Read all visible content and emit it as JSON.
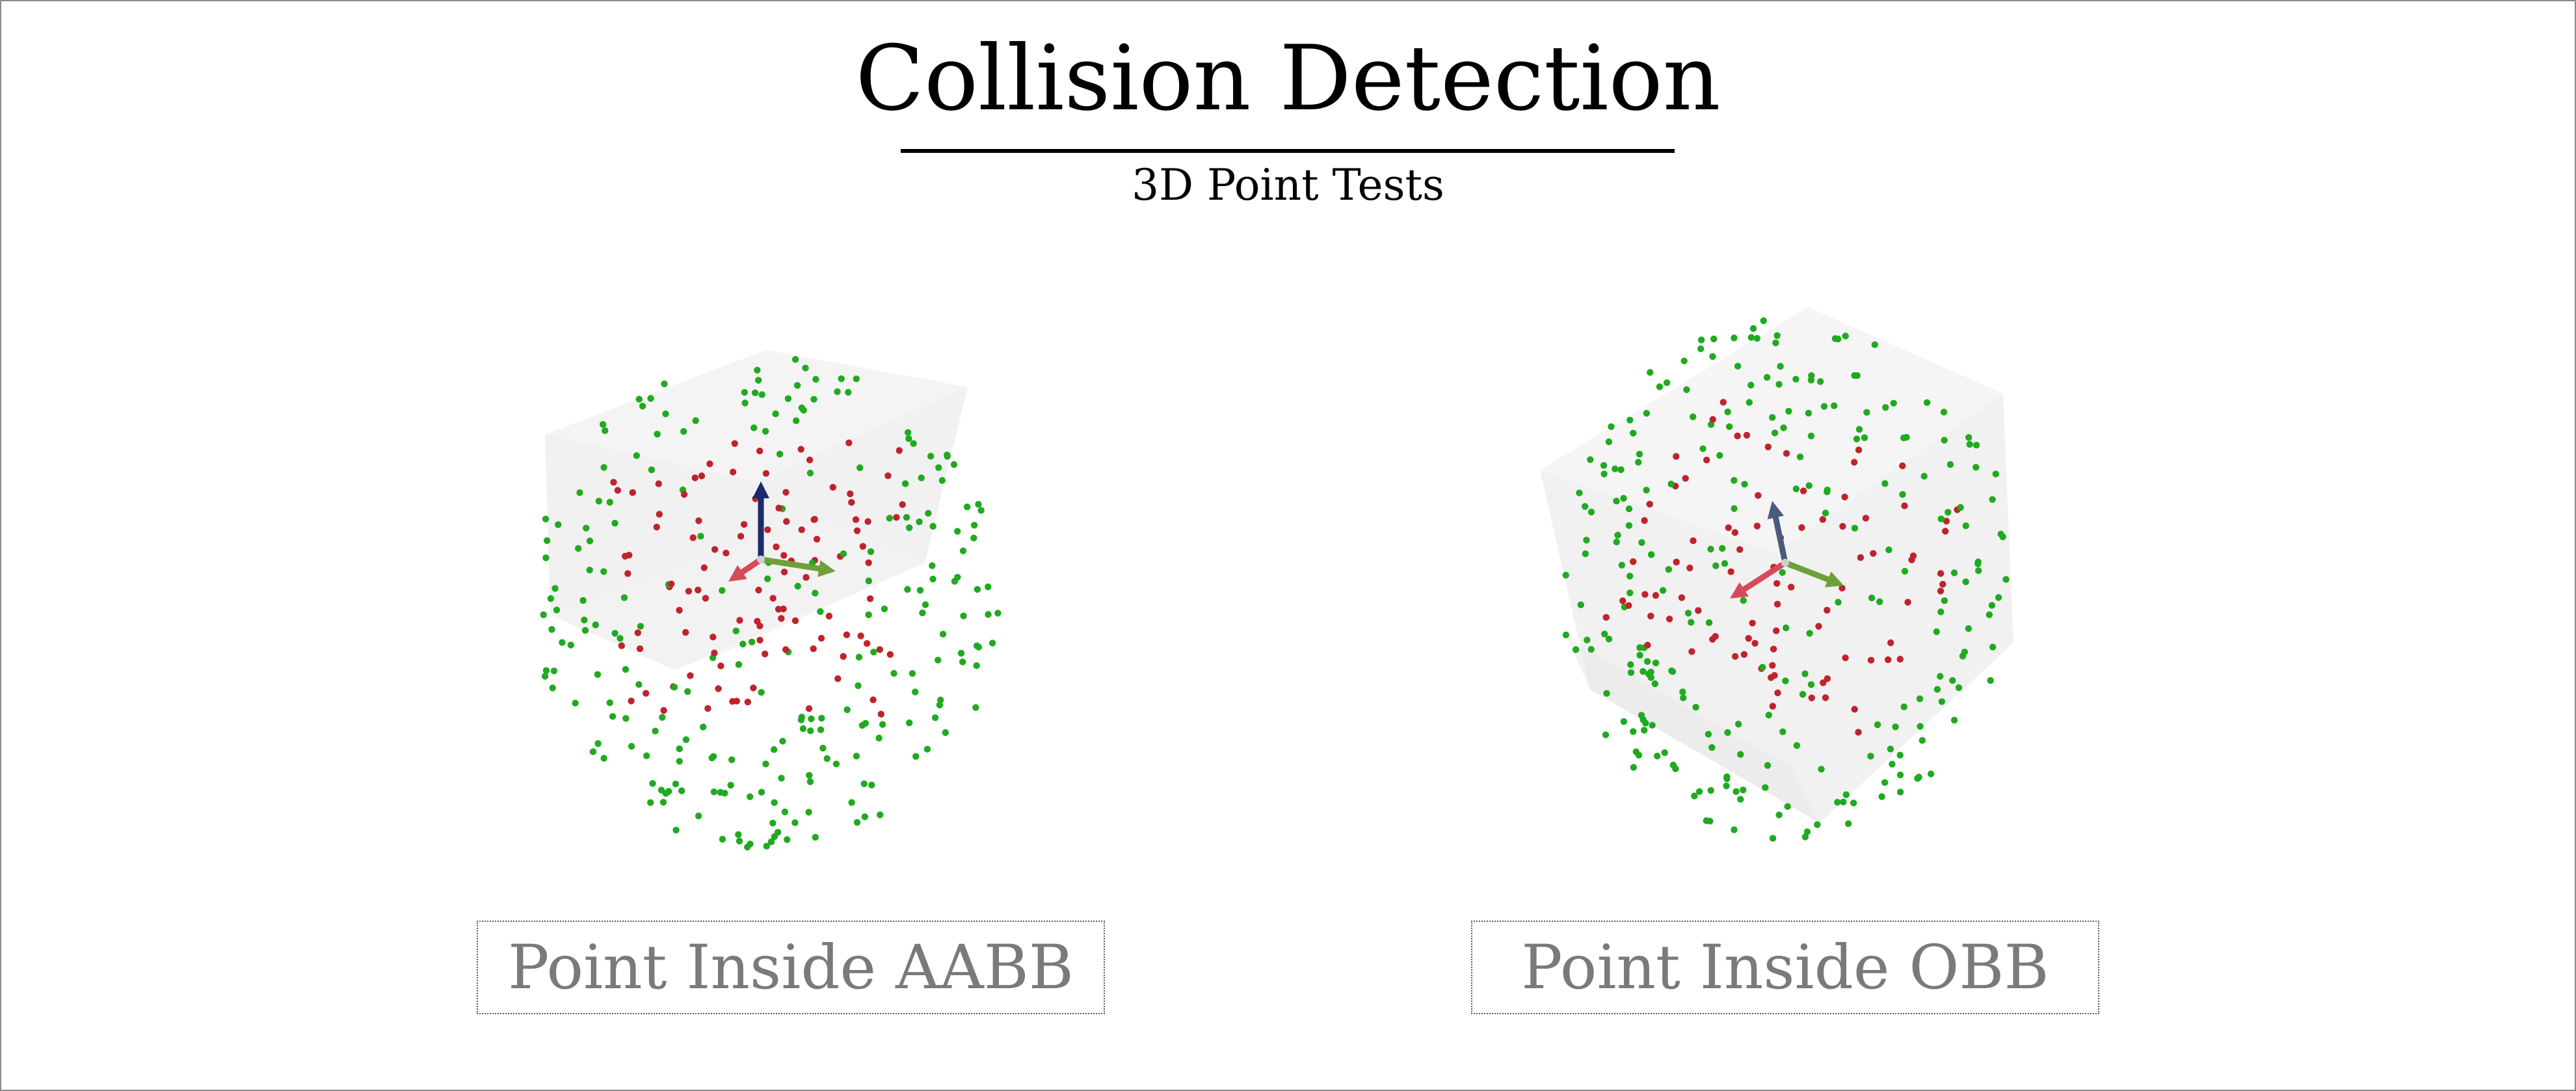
{
  "title": "Collision Detection",
  "subtitle": "3D Point Tests",
  "panels": [
    {
      "id": "aabb",
      "caption": "Point Inside AABB"
    },
    {
      "id": "obb",
      "caption": "Point Inside OBB"
    }
  ],
  "colors": {
    "inside_point": "#c0232b",
    "outside_point": "#1faa1f",
    "axis_x": "#d64a5a",
    "axis_y": "#6da03a",
    "axis_z_aabb": "#1b2a6b",
    "axis_z_obb": "#4a5a7a",
    "box_fill": "#e9e9e9"
  }
}
